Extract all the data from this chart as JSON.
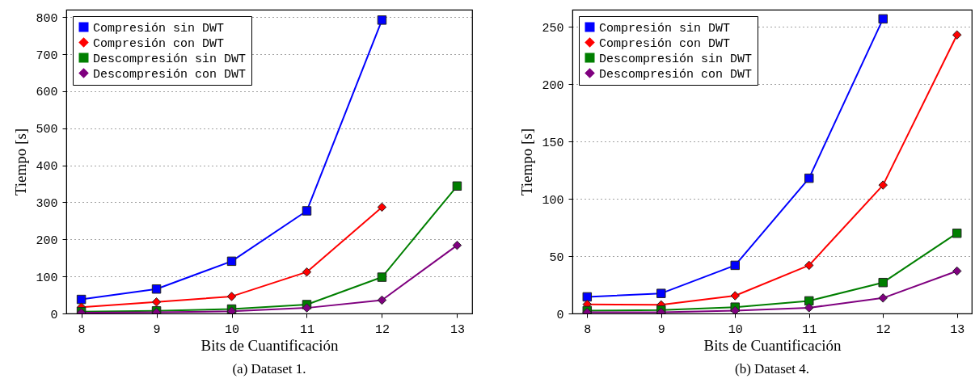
{
  "chart_data": [
    {
      "type": "line",
      "xlabel": "Bits de Cuantificación",
      "ylabel": "Tiempo [s]",
      "annotations": [
        "(a) Dataset 1."
      ],
      "x": [
        8,
        9,
        10,
        11,
        12,
        13
      ],
      "xlim": [
        7.8,
        13.2
      ],
      "xticks": [
        8,
        9,
        10,
        11,
        12,
        13
      ],
      "ylim": [
        0,
        820
      ],
      "yticks": [
        0,
        100,
        200,
        300,
        400,
        500,
        600,
        700,
        800
      ],
      "grid": "y",
      "legend": "top left",
      "line_style": "solid",
      "series": [
        {
          "name": "Compresión sin DWT",
          "color": "#0000ff",
          "marker": "square",
          "values": [
            38,
            66,
            141,
            277,
            792,
            null
          ]
        },
        {
          "name": "Compresión con DWT",
          "color": "#ff0000",
          "marker": "diamond",
          "values": [
            17,
            31,
            46,
            112,
            287,
            null
          ]
        },
        {
          "name": "Descompresión sin DWT",
          "color": "#007f00",
          "marker": "square",
          "values": [
            5,
            7,
            12,
            24,
            98,
            344
          ]
        },
        {
          "name": "Descompresión con DWT",
          "color": "#7f007f",
          "marker": "diamond",
          "values": [
            2,
            3,
            6,
            15,
            36,
            184
          ]
        }
      ]
    },
    {
      "type": "line",
      "xlabel": "Bits de Cuantificación",
      "ylabel": "Tiempo [s]",
      "annotations": [
        "(b) Dataset 4."
      ],
      "x": [
        8,
        9,
        10,
        11,
        12,
        13
      ],
      "xlim": [
        7.8,
        13.2
      ],
      "xticks": [
        8,
        9,
        10,
        11,
        12,
        13
      ],
      "ylim": [
        0,
        265
      ],
      "yticks": [
        0,
        50,
        100,
        150,
        200,
        250
      ],
      "grid": "y",
      "legend": "top left",
      "line_style": "solid",
      "series": [
        {
          "name": "Compresión sin DWT",
          "color": "#0000ff",
          "marker": "square",
          "values": [
            14.5,
            17.5,
            42,
            118,
            257,
            null
          ]
        },
        {
          "name": "Compresión con DWT",
          "color": "#ff0000",
          "marker": "diamond",
          "values": [
            8,
            7.5,
            15.5,
            42,
            112,
            243
          ]
        },
        {
          "name": "Descompresión sin DWT",
          "color": "#007f00",
          "marker": "square",
          "values": [
            2.5,
            3,
            5.5,
            11,
            27,
            70
          ]
        },
        {
          "name": "Descompresión con DWT",
          "color": "#7f007f",
          "marker": "diamond",
          "values": [
            1,
            1,
            2.5,
            5,
            13.5,
            37
          ]
        }
      ]
    }
  ]
}
